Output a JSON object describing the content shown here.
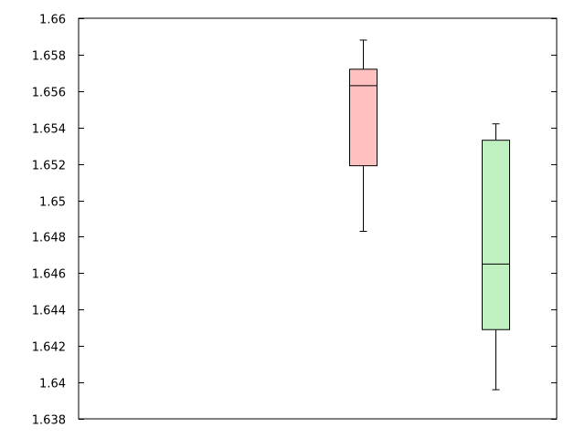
{
  "chart_data": {
    "type": "box",
    "title": "",
    "xlabel": "",
    "ylabel": "",
    "ylim": [
      1.638,
      1.66
    ],
    "yticks": [
      1.638,
      1.64,
      1.642,
      1.644,
      1.646,
      1.648,
      1.65,
      1.652,
      1.654,
      1.656,
      1.658,
      1.66
    ],
    "ytick_labels": [
      "1.638",
      "1.64",
      "1.642",
      "1.644",
      "1.646",
      "1.648",
      "1.65",
      "1.652",
      "1.654",
      "1.656",
      "1.658",
      "1.66"
    ],
    "grid": false,
    "legend": "none",
    "series": [
      {
        "position": 2,
        "whisker_low": 1.6483,
        "q1": 1.6519,
        "median": 1.6563,
        "q3": 1.6572,
        "whisker_high": 1.6588,
        "color": "#ffc0c0"
      },
      {
        "position": 3,
        "whisker_low": 1.6396,
        "q1": 1.6429,
        "median": 1.6465,
        "q3": 1.6533,
        "whisker_high": 1.6542,
        "color": "#c0f0c0"
      }
    ]
  }
}
